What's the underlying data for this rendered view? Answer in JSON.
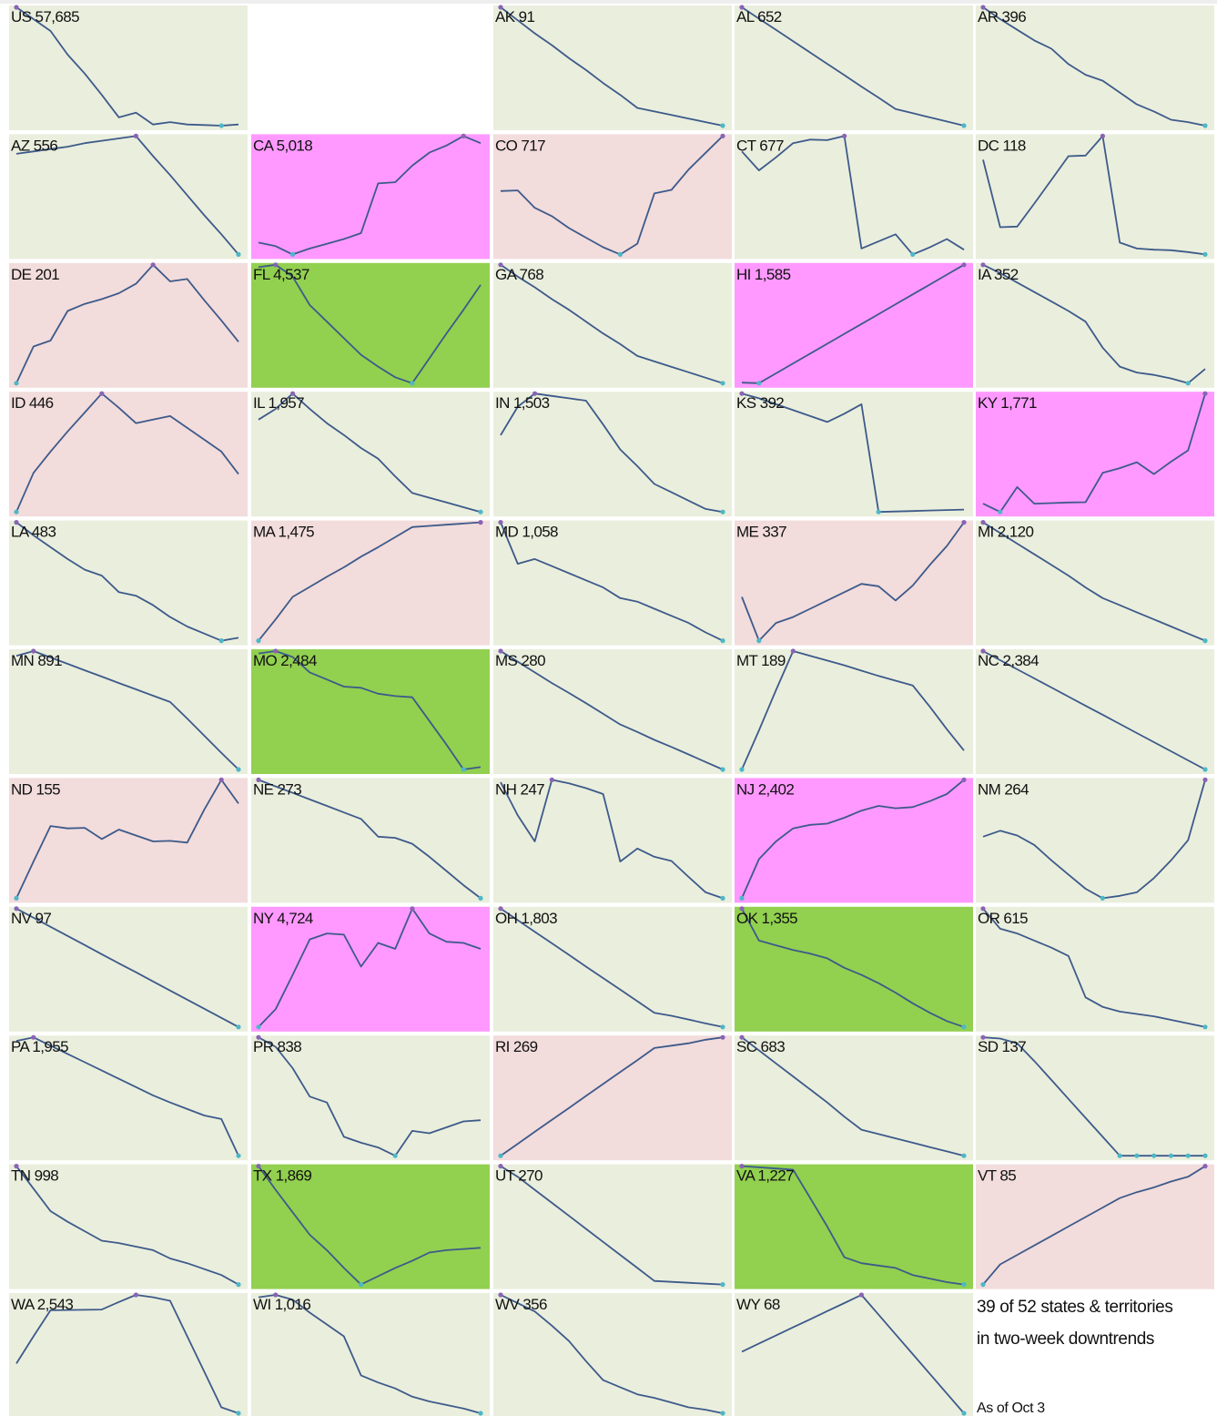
{
  "chart_data": [
    {
      "type": "line",
      "title": "US 57,685",
      "background": "#eaeedd",
      "color": "#3d5a8a",
      "max_color": "#8a63b5",
      "min_color": "#4cb8c8",
      "values": [
        100,
        90,
        80,
        60,
        44,
        26,
        7,
        11,
        1,
        3,
        1,
        0.5,
        0,
        1
      ]
    },
    {
      "type": "line",
      "title": "AK 91",
      "background": "#eaeedd",
      "color": "#3d5a8a",
      "max_color": "#8a63b5",
      "min_color": "#4cb8c8",
      "values": [
        100,
        89,
        78,
        68,
        57,
        47,
        36,
        26,
        15,
        12,
        9,
        6,
        3,
        0
      ]
    },
    {
      "type": "line",
      "title": "AL 652",
      "background": "#eaeedd",
      "color": "#3d5a8a",
      "max_color": "#8a63b5",
      "min_color": "#4cb8c8",
      "values": [
        100,
        90.4,
        80.9,
        71.3,
        61.8,
        52.2,
        42.7,
        33,
        23.6,
        14,
        10.5,
        7,
        3.5,
        0
      ]
    },
    {
      "type": "line",
      "title": "AR 396",
      "background": "#eaeedd",
      "color": "#3d5a8a",
      "max_color": "#8a63b5",
      "min_color": "#4cb8c8",
      "values": [
        100,
        90,
        81,
        72,
        65,
        52,
        43,
        38,
        28,
        18,
        12,
        5,
        3,
        0
      ]
    },
    {
      "type": "line",
      "title": "AZ 556",
      "background": "#eaeedd",
      "color": "#3d5a8a",
      "max_color": "#8a63b5",
      "min_color": "#4cb8c8",
      "values": [
        85,
        87,
        89,
        91,
        94,
        96,
        98,
        100,
        83,
        67,
        50,
        33,
        17,
        0
      ]
    },
    {
      "type": "line",
      "title": "CA 5,018",
      "background": "#ff99ff",
      "color": "#3d5a8a",
      "max_color": "#8a63b5",
      "min_color": "#4cb8c8",
      "values": [
        10,
        7,
        0,
        5,
        9,
        13,
        18,
        60,
        61,
        75,
        86,
        92,
        100,
        94
      ]
    },
    {
      "type": "line",
      "title": "CO 717",
      "background": "#f2dcdc",
      "color": "#3d5a8a",
      "max_color": "#8a63b5",
      "min_color": "#4cb8c8",
      "values": [
        54,
        54.5,
        40,
        33,
        23,
        15,
        7,
        1,
        10,
        52,
        55,
        72,
        86,
        100
      ]
    },
    {
      "type": "line",
      "title": "CT 677",
      "background": "#eaeedd",
      "color": "#3d5a8a",
      "max_color": "#8a63b5",
      "min_color": "#4cb8c8",
      "values": [
        87,
        71,
        82,
        94,
        97,
        96.5,
        100,
        5,
        11,
        17,
        0,
        6,
        13,
        4
      ]
    },
    {
      "type": "line",
      "title": "DC 118",
      "background": "#eaeedd",
      "color": "#3d5a8a",
      "max_color": "#8a63b5",
      "min_color": "#4cb8c8",
      "values": [
        80,
        23,
        23.5,
        43,
        63,
        83,
        83.5,
        100,
        10,
        5,
        4,
        3.5,
        2,
        0
      ]
    },
    {
      "type": "line",
      "title": "DE 201",
      "background": "#f2dcdc",
      "color": "#3d5a8a",
      "max_color": "#8a63b5",
      "min_color": "#4cb8c8",
      "values": [
        0,
        31,
        36,
        61,
        67,
        71,
        76,
        84,
        100,
        86,
        88,
        70,
        53,
        35
      ]
    },
    {
      "type": "line",
      "title": "FL 4,537",
      "background": "#92d050",
      "color": "#3d5a8a",
      "max_color": "#8a63b5",
      "min_color": "#4cb8c8",
      "values": [
        98,
        100,
        90,
        66,
        52,
        38,
        24,
        14,
        5,
        0,
        21,
        42,
        62,
        83
      ]
    },
    {
      "type": "line",
      "title": "GA 768",
      "background": "#eaeedd",
      "color": "#3d5a8a",
      "max_color": "#8a63b5",
      "min_color": "#4cb8c8",
      "values": [
        100,
        90,
        81,
        71,
        62,
        52,
        42,
        33,
        23,
        18.4,
        13.8,
        9.2,
        4.6,
        0
      ]
    },
    {
      "type": "line",
      "title": "HI 1,585",
      "background": "#ff99ff",
      "color": "#3d5a8a",
      "max_color": "#8a63b5",
      "min_color": "#4cb8c8",
      "values": [
        0.5,
        0,
        8.3,
        16.7,
        25,
        33.3,
        41.7,
        50,
        58.3,
        66.7,
        75,
        83.3,
        91.7,
        100
      ]
    },
    {
      "type": "line",
      "title": "IA 352",
      "background": "#eaeedd",
      "color": "#3d5a8a",
      "max_color": "#8a63b5",
      "min_color": "#4cb8c8",
      "values": [
        100,
        93,
        85,
        77,
        69,
        61,
        52,
        30,
        14,
        9,
        7,
        4,
        0,
        12
      ]
    },
    {
      "type": "line",
      "title": "ID 446",
      "background": "#f2dcdc",
      "color": "#3d5a8a",
      "max_color": "#8a63b5",
      "min_color": "#4cb8c8",
      "values": [
        0,
        33,
        51,
        68,
        84,
        100,
        88,
        75,
        78,
        81,
        71,
        61,
        51,
        32
      ]
    },
    {
      "type": "line",
      "title": "IL 1,957",
      "background": "#eaeedd",
      "color": "#3d5a8a",
      "max_color": "#8a63b5",
      "min_color": "#4cb8c8",
      "values": [
        78,
        87,
        100,
        87,
        75,
        65,
        54,
        45,
        30,
        16,
        12,
        8,
        4,
        0
      ]
    },
    {
      "type": "line",
      "title": "IN 1,503",
      "background": "#eaeedd",
      "color": "#3d5a8a",
      "max_color": "#8a63b5",
      "min_color": "#4cb8c8",
      "values": [
        65,
        89,
        100,
        98,
        96,
        94,
        74,
        53,
        39,
        24,
        17,
        10,
        3,
        0.5
      ]
    },
    {
      "type": "line",
      "title": "KS 392",
      "background": "#eaeedd",
      "color": "#3d5a8a",
      "max_color": "#8a63b5",
      "min_color": "#4cb8c8",
      "values": [
        100,
        96,
        91,
        86,
        81,
        76,
        83,
        91,
        0,
        0.4,
        0.8,
        1.2,
        1.6,
        2
      ]
    },
    {
      "type": "line",
      "title": "KY 1,771",
      "background": "#ff99ff",
      "color": "#3d5a8a",
      "max_color": "#8a63b5",
      "min_color": "#4cb8c8",
      "values": [
        7,
        0,
        21,
        7,
        7.5,
        8,
        8.2,
        33,
        37,
        42,
        32,
        42.5,
        52,
        100
      ]
    },
    {
      "type": "line",
      "title": "LA 483",
      "background": "#eaeedd",
      "color": "#3d5a8a",
      "max_color": "#8a63b5",
      "min_color": "#4cb8c8",
      "values": [
        100,
        89,
        79,
        69,
        60,
        55,
        41,
        38,
        30,
        20,
        12,
        6,
        0,
        2.5
      ]
    },
    {
      "type": "line",
      "title": "MA 1,475",
      "background": "#f2dcdc",
      "color": "#3d5a8a",
      "max_color": "#8a63b5",
      "min_color": "#4cb8c8",
      "values": [
        0,
        18,
        37,
        45.5,
        54,
        62,
        71,
        79,
        87.5,
        96,
        97,
        98,
        99,
        100
      ]
    },
    {
      "type": "line",
      "title": "MD 1,058",
      "background": "#eaeedd",
      "color": "#3d5a8a",
      "max_color": "#8a63b5",
      "min_color": "#4cb8c8",
      "values": [
        100,
        65,
        69,
        63,
        57,
        51,
        45,
        36,
        33,
        27,
        21,
        15,
        7,
        0
      ]
    },
    {
      "type": "line",
      "title": "ME 337",
      "background": "#f2dcdc",
      "color": "#3d5a8a",
      "max_color": "#8a63b5",
      "min_color": "#4cb8c8",
      "values": [
        37,
        0,
        15,
        20,
        27,
        34,
        41,
        48,
        46,
        34,
        46.5,
        64,
        80,
        100
      ]
    },
    {
      "type": "line",
      "title": "MI 2,120",
      "background": "#eaeedd",
      "color": "#3d5a8a",
      "max_color": "#8a63b5",
      "min_color": "#4cb8c8",
      "values": [
        100,
        91,
        82,
        73,
        64,
        55,
        45,
        36,
        30,
        24,
        18,
        12,
        6,
        0
      ]
    },
    {
      "type": "line",
      "title": "MN 891",
      "background": "#eaeedd",
      "color": "#3d5a8a",
      "max_color": "#8a63b5",
      "min_color": "#4cb8c8",
      "values": [
        96,
        100,
        94.6,
        89.2,
        83.8,
        78.5,
        73,
        67.7,
        62.3,
        57,
        43,
        28.5,
        14,
        0
      ]
    },
    {
      "type": "line",
      "title": "MO 2,484",
      "background": "#92d050",
      "color": "#3d5a8a",
      "max_color": "#8a63b5",
      "min_color": "#4cb8c8",
      "values": [
        98,
        100,
        95,
        82,
        76,
        70,
        69,
        64,
        62,
        61,
        41,
        21,
        0,
        2
      ]
    },
    {
      "type": "line",
      "title": "MS 280",
      "background": "#eaeedd",
      "color": "#3d5a8a",
      "max_color": "#8a63b5",
      "min_color": "#4cb8c8",
      "values": [
        100,
        91,
        82,
        73,
        64.6,
        56,
        47,
        38,
        31.7,
        25,
        19,
        12.7,
        6.3,
        0
      ]
    },
    {
      "type": "line",
      "title": "MT 189",
      "background": "#eaeedd",
      "color": "#3d5a8a",
      "max_color": "#8a63b5",
      "min_color": "#4cb8c8",
      "values": [
        0,
        33,
        67,
        100,
        96,
        92,
        88,
        83.5,
        79,
        75,
        71,
        53,
        34,
        16
      ]
    },
    {
      "type": "line",
      "title": "NC 2,384",
      "background": "#eaeedd",
      "color": "#3d5a8a",
      "max_color": "#8a63b5",
      "min_color": "#4cb8c8",
      "values": [
        100,
        92.3,
        84.6,
        76.9,
        69.2,
        61.5,
        53.8,
        46.2,
        38.5,
        30.8,
        23.1,
        15.4,
        7.7,
        0
      ]
    },
    {
      "type": "line",
      "title": "ND 155",
      "background": "#f2dcdc",
      "color": "#3d5a8a",
      "max_color": "#8a63b5",
      "min_color": "#4cb8c8",
      "values": [
        0,
        31,
        61,
        59,
        59.5,
        50,
        58,
        53,
        48,
        48.5,
        47,
        75,
        100,
        80
      ]
    },
    {
      "type": "line",
      "title": "NE 273",
      "background": "#eaeedd",
      "color": "#3d5a8a",
      "max_color": "#8a63b5",
      "min_color": "#4cb8c8",
      "values": [
        100,
        94.5,
        89,
        83.5,
        78,
        72.5,
        67,
        52,
        51,
        46,
        35,
        23,
        11,
        0
      ]
    },
    {
      "type": "line",
      "title": "NH 247",
      "background": "#eaeedd",
      "color": "#3d5a8a",
      "max_color": "#8a63b5",
      "min_color": "#4cb8c8",
      "values": [
        98,
        70,
        48,
        100,
        97,
        93,
        88,
        31,
        42,
        35,
        31.5,
        18,
        5,
        0
      ]
    },
    {
      "type": "line",
      "title": "NJ 2,402",
      "background": "#ff99ff",
      "color": "#3d5a8a",
      "max_color": "#8a63b5",
      "min_color": "#4cb8c8",
      "values": [
        0,
        33,
        48,
        59,
        62,
        63,
        68,
        74,
        78,
        76,
        77,
        82,
        88,
        100
      ]
    },
    {
      "type": "line",
      "title": "NM 264",
      "background": "#eaeedd",
      "color": "#3d5a8a",
      "max_color": "#8a63b5",
      "min_color": "#4cb8c8",
      "values": [
        52,
        57,
        53,
        45,
        32,
        20,
        8,
        0,
        2,
        5,
        17,
        32,
        49,
        100
      ]
    },
    {
      "type": "line",
      "title": "NV 97",
      "background": "#eaeedd",
      "color": "#3d5a8a",
      "max_color": "#8a63b5",
      "min_color": "#4cb8c8",
      "values": [
        100,
        92.3,
        84.6,
        76.9,
        69.2,
        61.5,
        53.8,
        46.2,
        38.5,
        30.8,
        23.1,
        15.4,
        7.7,
        0
      ]
    },
    {
      "type": "line",
      "title": "NY 4,724",
      "background": "#ff99ff",
      "color": "#3d5a8a",
      "max_color": "#8a63b5",
      "min_color": "#4cb8c8",
      "values": [
        0,
        15,
        44,
        74,
        79,
        78,
        51,
        71,
        66,
        100,
        79,
        72,
        71,
        66
      ]
    },
    {
      "type": "line",
      "title": "OH 1,803",
      "background": "#eaeedd",
      "color": "#3d5a8a",
      "max_color": "#8a63b5",
      "min_color": "#4cb8c8",
      "values": [
        100,
        90.2,
        80.4,
        70.7,
        60.9,
        51,
        41.3,
        31.6,
        21.8,
        12,
        9.5,
        6.3,
        3,
        0
      ]
    },
    {
      "type": "line",
      "title": "OK 1,355",
      "background": "#92d050",
      "color": "#3d5a8a",
      "max_color": "#8a63b5",
      "min_color": "#4cb8c8",
      "values": [
        100,
        73,
        69,
        65,
        62,
        58,
        50,
        44,
        37,
        29,
        20,
        12,
        5,
        0
      ]
    },
    {
      "type": "line",
      "title": "OR 615",
      "background": "#eaeedd",
      "color": "#3d5a8a",
      "max_color": "#8a63b5",
      "min_color": "#4cb8c8",
      "values": [
        100,
        83,
        79,
        73,
        67,
        60,
        25,
        17,
        13,
        11,
        9,
        6,
        3,
        0
      ]
    },
    {
      "type": "line",
      "title": "PA 1,955",
      "background": "#eaeedd",
      "color": "#3d5a8a",
      "max_color": "#8a63b5",
      "min_color": "#4cb8c8",
      "values": [
        97,
        100,
        93,
        86,
        79,
        72,
        65,
        58,
        51,
        45,
        39.5,
        34,
        31,
        0
      ]
    },
    {
      "type": "line",
      "title": "PR 838",
      "background": "#eaeedd",
      "color": "#3d5a8a",
      "max_color": "#8a63b5",
      "min_color": "#4cb8c8",
      "values": [
        100,
        92,
        74,
        50,
        45,
        16,
        11,
        7,
        0,
        21,
        19,
        24,
        29,
        30
      ]
    },
    {
      "type": "line",
      "title": "RI 269",
      "background": "#f2dcdc",
      "color": "#3d5a8a",
      "max_color": "#8a63b5",
      "min_color": "#4cb8c8",
      "values": [
        0,
        10.1,
        20.2,
        30.3,
        40.4,
        50.5,
        60.6,
        70.7,
        80.8,
        91,
        93,
        95,
        98,
        100
      ]
    },
    {
      "type": "line",
      "title": "SC 683",
      "background": "#eaeedd",
      "color": "#3d5a8a",
      "max_color": "#8a63b5",
      "min_color": "#4cb8c8",
      "values": [
        100,
        89,
        78,
        67,
        56,
        45,
        33,
        22,
        18.3,
        14.7,
        11,
        7.3,
        3.7,
        0
      ]
    },
    {
      "type": "line",
      "title": "SD 137",
      "background": "#eaeedd",
      "color": "#3d5a8a",
      "max_color": "#8a63b5",
      "min_color": "#4cb8c8",
      "values": [
        100,
        99,
        95,
        80,
        64,
        48,
        32,
        16,
        0,
        0,
        0,
        0,
        0,
        0
      ]
    },
    {
      "type": "line",
      "title": "TN 998",
      "background": "#eaeedd",
      "color": "#3d5a8a",
      "max_color": "#8a63b5",
      "min_color": "#4cb8c8",
      "values": [
        100,
        81,
        62,
        53,
        45,
        37,
        35,
        32,
        29,
        22,
        18,
        13,
        8,
        0
      ]
    },
    {
      "type": "line",
      "title": "TX 1,869",
      "background": "#92d050",
      "color": "#3d5a8a",
      "max_color": "#8a63b5",
      "min_color": "#4cb8c8",
      "values": [
        100,
        80,
        61,
        42,
        29,
        14,
        0,
        7,
        14,
        20,
        27,
        29,
        30,
        31
      ]
    },
    {
      "type": "line",
      "title": "UT 270",
      "background": "#eaeedd",
      "color": "#3d5a8a",
      "max_color": "#8a63b5",
      "min_color": "#4cb8c8",
      "values": [
        100,
        91,
        80,
        69,
        58,
        47,
        36,
        25,
        14,
        3,
        2.2,
        1.5,
        0.7,
        0
      ]
    },
    {
      "type": "line",
      "title": "VA 1,227",
      "background": "#92d050",
      "color": "#3d5a8a",
      "max_color": "#8a63b5",
      "min_color": "#4cb8c8",
      "values": [
        100,
        99,
        98,
        97,
        73,
        49,
        23,
        18,
        16,
        14,
        8,
        5,
        2,
        0
      ]
    },
    {
      "type": "line",
      "title": "VT 85",
      "background": "#f2dcdc",
      "color": "#3d5a8a",
      "max_color": "#8a63b5",
      "min_color": "#4cb8c8",
      "values": [
        0,
        17,
        25,
        33,
        41,
        49,
        57,
        65,
        73,
        78,
        82,
        87,
        91,
        100
      ]
    },
    {
      "type": "line",
      "title": "WA 2,543",
      "background": "#eaeedd",
      "color": "#3d5a8a",
      "max_color": "#8a63b5",
      "min_color": "#4cb8c8",
      "values": [
        42,
        65,
        87,
        87.2,
        87.4,
        87.6,
        94,
        100,
        98,
        95,
        65,
        35,
        5,
        0
      ]
    },
    {
      "type": "line",
      "title": "WI 1,016",
      "background": "#eaeedd",
      "color": "#3d5a8a",
      "max_color": "#8a63b5",
      "min_color": "#4cb8c8",
      "values": [
        98,
        100,
        96,
        85,
        75,
        65,
        32,
        26,
        21,
        14,
        10,
        7,
        4,
        0
      ]
    },
    {
      "type": "line",
      "title": "WV 356",
      "background": "#eaeedd",
      "color": "#3d5a8a",
      "max_color": "#8a63b5",
      "min_color": "#4cb8c8",
      "values": [
        100,
        93,
        86,
        74,
        61,
        44,
        28,
        22,
        16,
        13,
        9,
        5,
        3,
        0
      ]
    },
    {
      "type": "line",
      "title": "WY 68",
      "background": "#eaeedd",
      "color": "#3d5a8a",
      "max_color": "#8a63b5",
      "min_color": "#4cb8c8",
      "values": [
        52,
        58.9,
        65.7,
        72.6,
        79.4,
        86.3,
        93.1,
        100,
        83.3,
        66.7,
        50,
        33.3,
        16.7,
        0
      ]
    }
  ],
  "summary": {
    "line1": "39 of 52 states & territories",
    "line2": "in two-week downtrends",
    "note": "As of Oct 3"
  }
}
